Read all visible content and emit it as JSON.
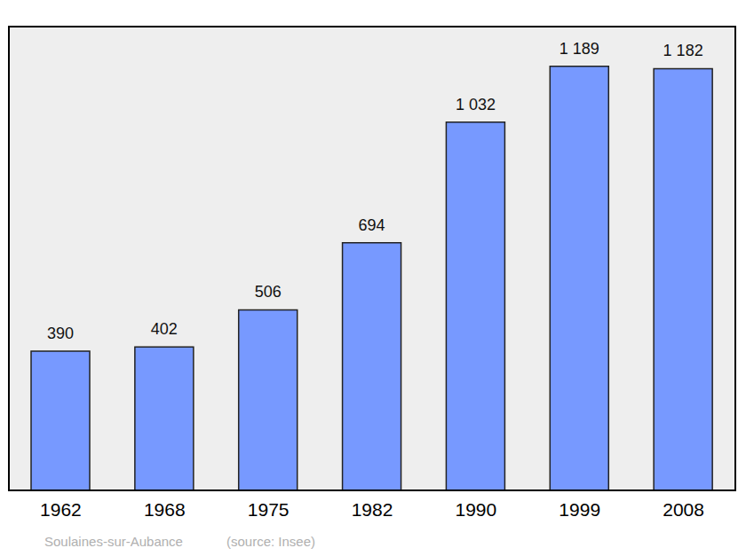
{
  "chart_data": {
    "type": "bar",
    "categories": [
      "1962",
      "1968",
      "1975",
      "1982",
      "1990",
      "1999",
      "2008"
    ],
    "values": [
      390,
      402,
      506,
      694,
      1032,
      1189,
      1182
    ],
    "value_labels": [
      "390",
      "402",
      "506",
      "694",
      "1 032",
      "1 189",
      "1 182"
    ],
    "color": "#7799ff",
    "ylim": [
      0,
      1300
    ],
    "tick_labels": "x",
    "data_labels": true,
    "grid": false,
    "annotations": [
      "Soulaines-sur-Aubance",
      "(source: Insee)"
    ]
  }
}
